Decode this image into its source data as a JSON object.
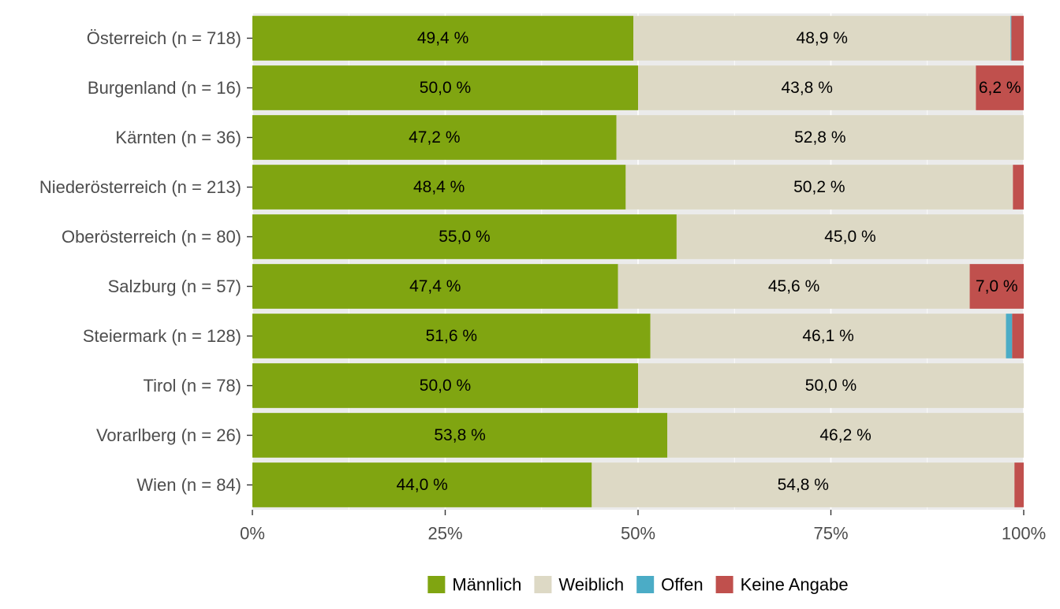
{
  "chart_data": {
    "type": "bar",
    "orientation": "horizontal",
    "stacked": true,
    "categories": [
      "Österreich (n = 718)",
      "Burgenland (n = 16)",
      "Kärnten (n = 36)",
      "Niederösterreich (n = 213)",
      "Oberösterreich (n = 80)",
      "Salzburg (n = 57)",
      "Steiermark (n = 128)",
      "Tirol (n = 78)",
      "Vorarlberg (n = 26)",
      "Wien (n = 84)"
    ],
    "series": [
      {
        "name": "Männlich",
        "color": "#80a511",
        "values": [
          49.4,
          50.0,
          47.2,
          48.4,
          55.0,
          47.4,
          51.6,
          50.0,
          53.8,
          44.0
        ],
        "labels": [
          "49,4 %",
          "50,0 %",
          "47,2 %",
          "48,4 %",
          "55,0 %",
          "47,4 %",
          "51,6 %",
          "50,0 %",
          "53,8 %",
          "44,0 %"
        ]
      },
      {
        "name": "Weiblich",
        "color": "#ddd9c5",
        "values": [
          48.9,
          43.8,
          52.8,
          50.2,
          45.0,
          45.6,
          46.1,
          50.0,
          46.2,
          54.8
        ],
        "labels": [
          "48,9 %",
          "43,8 %",
          "52,8 %",
          "50,2 %",
          "45,0 %",
          "45,6 %",
          "46,1 %",
          "50,0 %",
          "46,2 %",
          "54,8 %"
        ]
      },
      {
        "name": "Offen",
        "color": "#4bacc6",
        "values": [
          0.1,
          0.0,
          0.0,
          0.0,
          0.0,
          0.0,
          0.8,
          0.0,
          0.0,
          0.0
        ],
        "labels": [
          "",
          "",
          "",
          "",
          "",
          "",
          "",
          "",
          "",
          ""
        ]
      },
      {
        "name": "Keine Angabe",
        "color": "#c0504d",
        "values": [
          1.6,
          6.2,
          0.0,
          1.4,
          0.0,
          7.0,
          1.5,
          0.0,
          0.0,
          1.2
        ],
        "labels": [
          "",
          "6,2 %",
          "",
          "",
          "",
          "7,0 %",
          "",
          "",
          "",
          ""
        ]
      }
    ],
    "x_ticks": [
      {
        "value": 0,
        "label": "0%"
      },
      {
        "value": 25,
        "label": "25%"
      },
      {
        "value": 50,
        "label": "50%"
      },
      {
        "value": 75,
        "label": "75%"
      },
      {
        "value": 100,
        "label": "100%"
      }
    ],
    "xlim": [
      0,
      100
    ],
    "title": "",
    "xlabel": "",
    "ylabel": "",
    "grid": true,
    "legend_position": "bottom"
  }
}
